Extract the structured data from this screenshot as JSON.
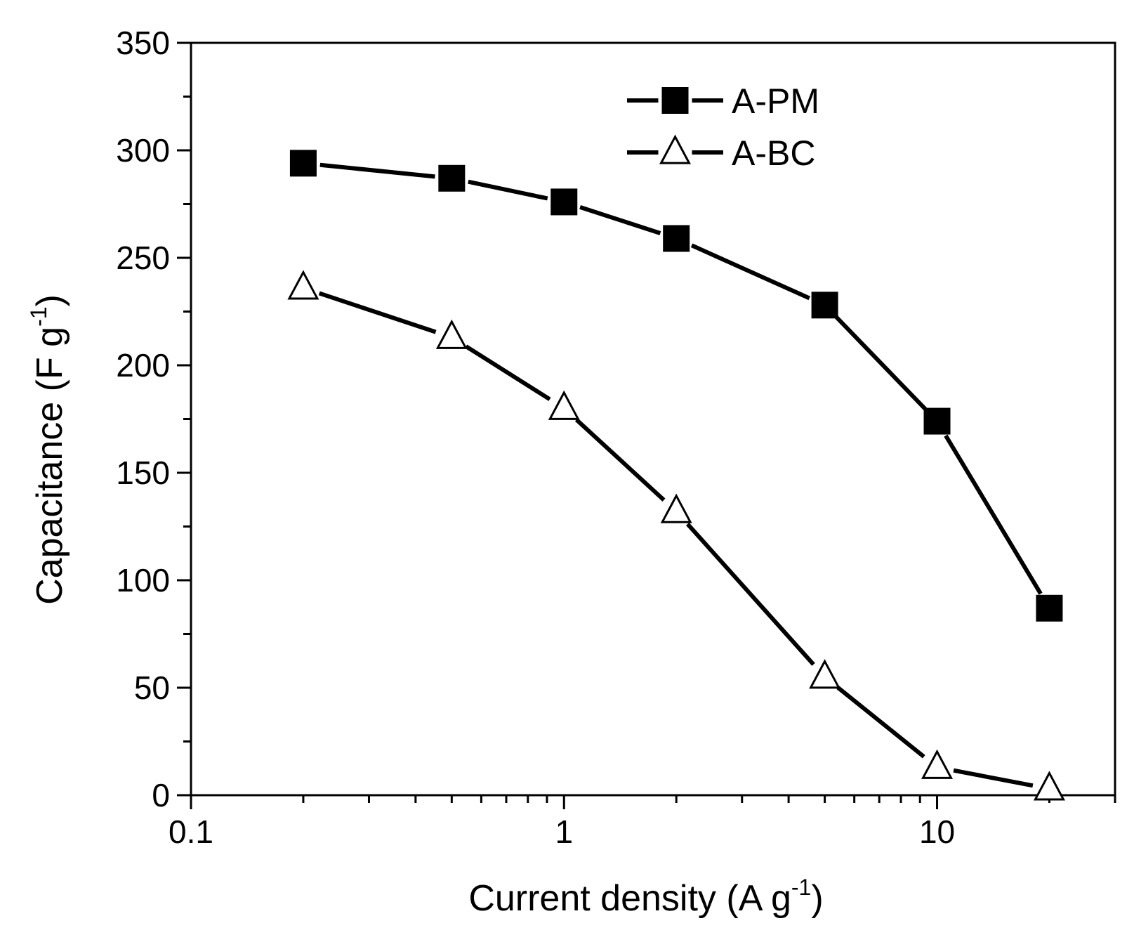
{
  "chart_data": {
    "type": "line",
    "x_scale": "log",
    "xlim": [
      0.1,
      30
    ],
    "ylim": [
      0,
      350
    ],
    "x_ticks": [
      "0.1",
      "1",
      "10"
    ],
    "y_ticks": [
      "0",
      "50",
      "100",
      "150",
      "200",
      "250",
      "300",
      "350"
    ],
    "xlabel": {
      "main": "Current density (A g",
      "sup": "-1",
      "end": ")"
    },
    "ylabel": {
      "main": "Capacitance (F g",
      "sup": "-1",
      "end": ")"
    },
    "legend_position": "top-center",
    "grid": false,
    "series": [
      {
        "name": "A-PM",
        "marker": "filled-square",
        "color": "#000000",
        "x": [
          0.2,
          0.5,
          1,
          2,
          5,
          10,
          20
        ],
        "y": [
          294,
          287,
          276,
          259,
          228,
          174,
          87
        ]
      },
      {
        "name": "A-BC",
        "marker": "open-triangle",
        "color": "#000000",
        "x": [
          0.2,
          0.5,
          1,
          2,
          5,
          10,
          20
        ],
        "y": [
          236,
          213,
          180,
          132,
          55,
          13,
          3
        ]
      }
    ]
  }
}
